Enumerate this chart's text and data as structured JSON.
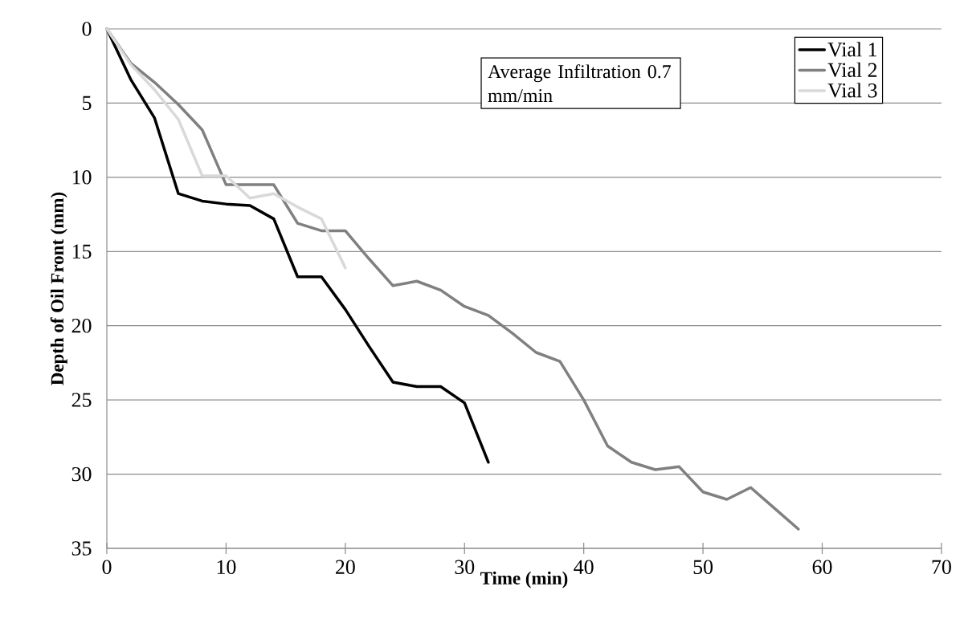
{
  "chart_data": {
    "type": "line",
    "xlabel": "Time (min)",
    "ylabel": "Depth of Oil Front (mm)",
    "xlim": [
      0,
      70
    ],
    "xticks": [
      0,
      10,
      20,
      30,
      40,
      50,
      60,
      70
    ],
    "ylim": [
      35,
      0
    ],
    "yticks": [
      0,
      5,
      10,
      15,
      20,
      25,
      30,
      35
    ],
    "grid": "y",
    "legend": "top right",
    "marker": "none",
    "line_style": "solid",
    "annotations": [
      "Average Infiltration 0.7 mm/min"
    ],
    "series": [
      {
        "name": "Vial 1",
        "color": "#000000",
        "x": [
          0,
          2,
          4,
          6,
          8,
          10,
          12,
          14,
          16,
          18,
          20,
          22,
          24,
          26,
          28,
          30,
          32
        ],
        "values": [
          0,
          3.4,
          6.0,
          11.1,
          11.6,
          11.8,
          11.9,
          12.8,
          16.7,
          16.7,
          18.9,
          21.4,
          23.8,
          24.1,
          24.1,
          25.2,
          29.2
        ]
      },
      {
        "name": "Vial 2",
        "color": "#808080",
        "x": [
          0,
          2,
          4,
          6,
          8,
          10,
          12,
          14,
          16,
          18,
          20,
          22,
          24,
          26,
          28,
          30,
          32,
          34,
          36,
          38,
          40,
          42,
          44,
          46,
          48,
          50,
          52,
          54,
          56,
          58
        ],
        "values": [
          0,
          2.3,
          3.6,
          5.1,
          6.8,
          10.5,
          10.5,
          10.5,
          13.1,
          13.6,
          13.6,
          15.5,
          17.3,
          17.0,
          17.6,
          18.7,
          19.3,
          20.5,
          21.8,
          22.4,
          25.0,
          28.1,
          29.2,
          29.7,
          29.5,
          31.2,
          31.7,
          30.9,
          32.3,
          33.7
        ]
      },
      {
        "name": "Vial 3",
        "color": "#d9d9d9",
        "x": [
          0,
          2,
          4,
          6,
          8,
          10,
          12,
          14,
          16,
          18,
          20
        ],
        "values": [
          0,
          2.4,
          4.1,
          6.1,
          9.9,
          9.9,
          11.4,
          11.1,
          12.0,
          12.8,
          16.1
        ]
      }
    ]
  }
}
